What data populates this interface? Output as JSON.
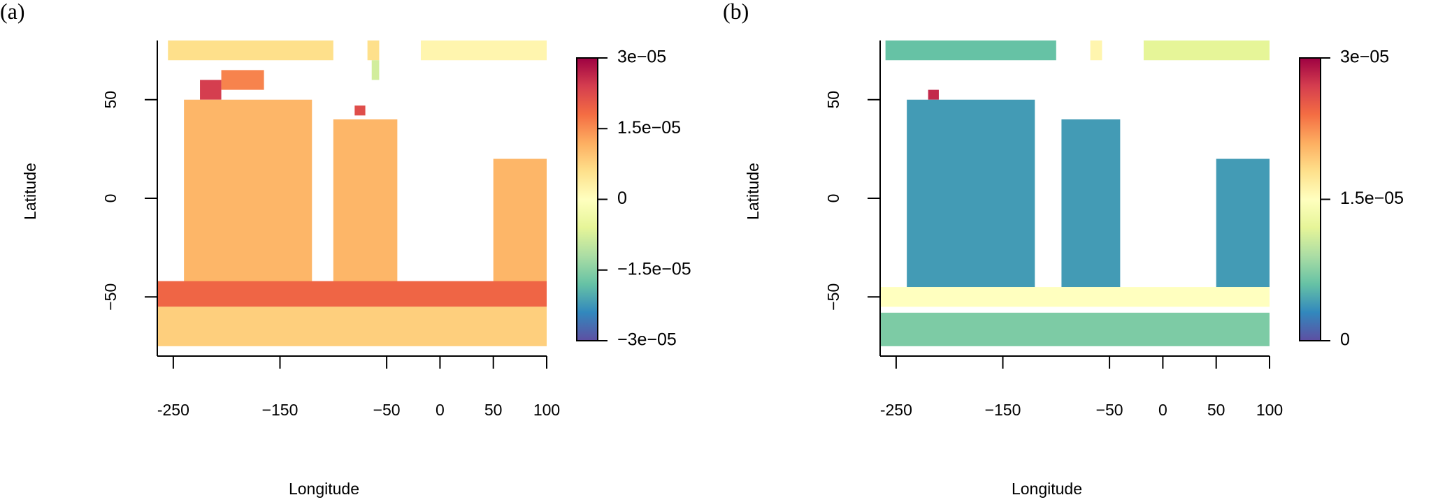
{
  "chart_data": [
    {
      "type": "heatmap",
      "panel_label": "(a)",
      "title": "",
      "xlabel": "Longitude",
      "ylabel": "Latitude",
      "xlim": [
        -265,
        100
      ],
      "ylim": [
        -80,
        80
      ],
      "x_ticks": [
        -250,
        -150,
        -50,
        0,
        50,
        100
      ],
      "x_tick_labels": [
        "-250",
        "−150",
        "−50",
        "0",
        "50",
        "100"
      ],
      "y_ticks": [
        -50,
        0,
        50
      ],
      "y_tick_labels": [
        "−50",
        "0",
        "50"
      ],
      "colorbar": {
        "range": [
          -3e-05,
          3e-05
        ],
        "ticks": [
          3e-05,
          1.5e-05,
          0,
          -1.5e-05,
          -3e-05
        ],
        "tick_labels": [
          "3e−05",
          "1.5e−05",
          "0",
          "−1.5e−05",
          "−3e−05"
        ],
        "palette": [
          "#5e4fa2",
          "#3288bd",
          "#66c2a5",
          "#abdda4",
          "#e6f598",
          "#ffffbf",
          "#fee08b",
          "#fdae61",
          "#f46d43",
          "#d53e4f",
          "#9e0142"
        ]
      },
      "regions": [
        {
          "x": [
            -255,
            -100
          ],
          "y": [
            70,
            80
          ],
          "value": 6e-06
        },
        {
          "x": [
            -68,
            -57
          ],
          "y": [
            70,
            80
          ],
          "value": 6e-06
        },
        {
          "x": [
            -18,
            100
          ],
          "y": [
            70,
            80
          ],
          "value": 2e-06
        },
        {
          "x": [
            -64,
            -57
          ],
          "y": [
            60,
            70
          ],
          "value": -8e-06
        },
        {
          "x": [
            -225,
            -205
          ],
          "y": [
            50,
            60
          ],
          "value": 2.4e-05
        },
        {
          "x": [
            -205,
            -165
          ],
          "y": [
            55,
            65
          ],
          "value": 1.6e-05
        },
        {
          "x": [
            -80,
            -70
          ],
          "y": [
            42,
            47
          ],
          "value": 2.2e-05
        },
        {
          "x": [
            -240,
            -120
          ],
          "y": [
            -45,
            50
          ],
          "value": 1.1e-05
        },
        {
          "x": [
            -100,
            -40
          ],
          "y": [
            -45,
            40
          ],
          "value": 1.1e-05
        },
        {
          "x": [
            50,
            100
          ],
          "y": [
            -45,
            20
          ],
          "value": 1.1e-05
        },
        {
          "x": [
            -265,
            100
          ],
          "y": [
            -55,
            -42
          ],
          "value": 1.9e-05
        },
        {
          "x": [
            -265,
            100
          ],
          "y": [
            -75,
            -55
          ],
          "value": 8e-06
        }
      ]
    },
    {
      "type": "heatmap",
      "panel_label": "(b)",
      "title": "",
      "xlabel": "Longitude",
      "ylabel": "Latitude",
      "xlim": [
        -265,
        100
      ],
      "ylim": [
        -80,
        80
      ],
      "x_ticks": [
        -250,
        -150,
        -50,
        0,
        50,
        100
      ],
      "x_tick_labels": [
        "-250",
        "−150",
        "−50",
        "0",
        "50",
        "100"
      ],
      "y_ticks": [
        -50,
        0,
        50
      ],
      "y_tick_labels": [
        "−50",
        "0",
        "50"
      ],
      "colorbar": {
        "range": [
          0,
          3e-05
        ],
        "ticks": [
          3e-05,
          1.5e-05,
          0
        ],
        "tick_labels": [
          "3e−05",
          "1.5e−05",
          "0"
        ],
        "palette": [
          "#5e4fa2",
          "#3288bd",
          "#66c2a5",
          "#abdda4",
          "#e6f598",
          "#ffffbf",
          "#fee08b",
          "#fdae61",
          "#f46d43",
          "#d53e4f",
          "#9e0142"
        ]
      },
      "regions": [
        {
          "x": [
            -260,
            -100
          ],
          "y": [
            70,
            80
          ],
          "value": 6e-06
        },
        {
          "x": [
            -68,
            -57
          ],
          "y": [
            70,
            80
          ],
          "value": 1.6e-05
        },
        {
          "x": [
            -18,
            100
          ],
          "y": [
            70,
            80
          ],
          "value": 1.2e-05
        },
        {
          "x": [
            -220,
            -210
          ],
          "y": [
            50,
            55
          ],
          "value": 2.8e-05
        },
        {
          "x": [
            -240,
            -120
          ],
          "y": [
            -45,
            50
          ],
          "value": 4e-06
        },
        {
          "x": [
            -95,
            -40
          ],
          "y": [
            -45,
            40
          ],
          "value": 4e-06
        },
        {
          "x": [
            50,
            100
          ],
          "y": [
            -45,
            20
          ],
          "value": 4e-06
        },
        {
          "x": [
            -265,
            100
          ],
          "y": [
            -55,
            -45
          ],
          "value": 1.5e-05
        },
        {
          "x": [
            -265,
            100
          ],
          "y": [
            -75,
            -58
          ],
          "value": 7e-06
        }
      ]
    }
  ]
}
